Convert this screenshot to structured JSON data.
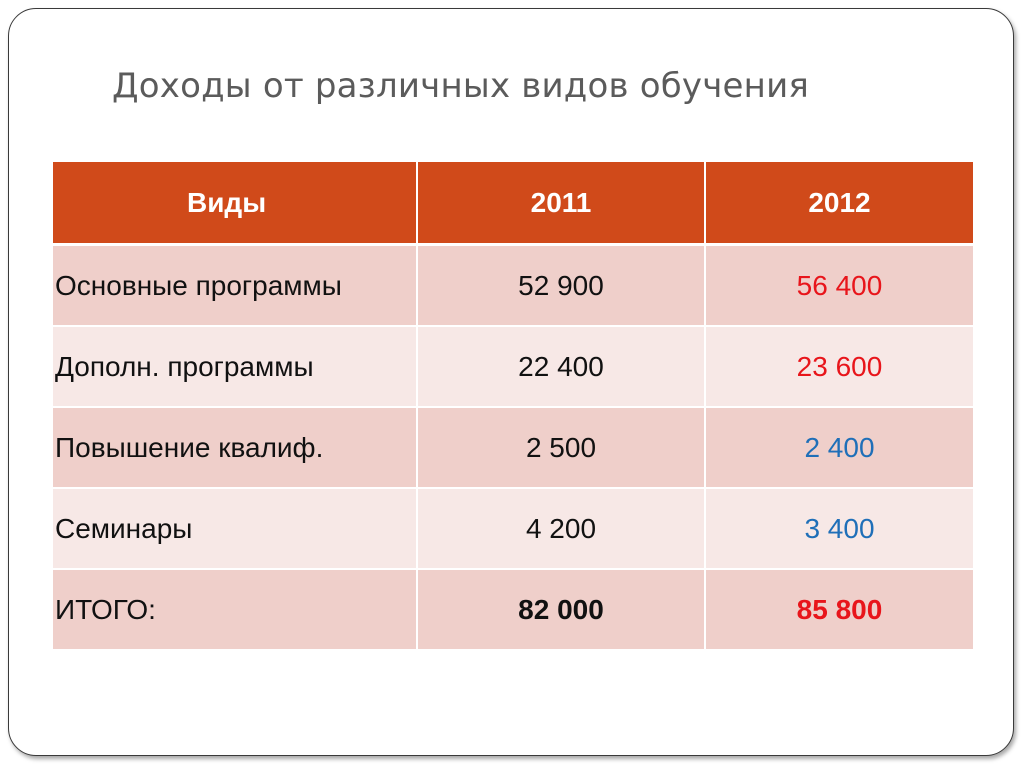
{
  "slide": {
    "title": "Доходы от различных видов обучения"
  },
  "table": {
    "headers": [
      "Виды",
      "2011",
      "2012"
    ],
    "rows": [
      {
        "name": "Основные программы",
        "y2011": "52 900",
        "y2012": "56 400"
      },
      {
        "name": "Дополн. программы",
        "y2011": "22 400",
        "y2012": "23 600"
      },
      {
        "name": "Повышение квалиф.",
        "y2011": "2 500",
        "y2012": "2 400"
      },
      {
        "name": "Семинары",
        "y2011": "4 200",
        "y2012": "3 400"
      },
      {
        "name": "ИТОГО:",
        "y2011": "82 000",
        "y2012": "85 800"
      }
    ]
  },
  "colors": {
    "header_bg": "#d04a1a",
    "row_odd": "#efcfca",
    "row_even": "#f7e8e6",
    "increase": "#e8151b",
    "decrease": "#1f6fb8"
  }
}
